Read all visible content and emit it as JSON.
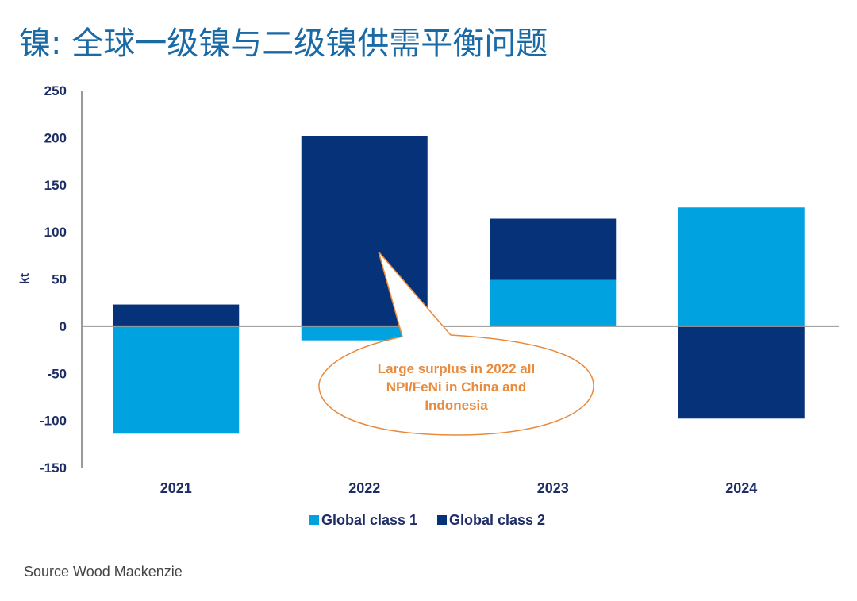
{
  "title": "镍: 全球一级镍与二级镍供需平衡问题",
  "source": "Source Wood Mackenzie",
  "colors": {
    "title": "#1a6aa6",
    "class1": "#00a3e0",
    "class2": "#06327a",
    "axis_text": "#1f2d66",
    "axis_line": "#9a9a9a",
    "annotation": "#e98a3c"
  },
  "chart_data": {
    "type": "bar",
    "stacked": true,
    "title": "镍: 全球一级镍与二级镍供需平衡问题",
    "xlabel": "",
    "ylabel": "kt",
    "ylim": [
      -150,
      250
    ],
    "yticks": [
      250,
      200,
      150,
      100,
      50,
      0,
      -50,
      -100,
      -150
    ],
    "ytick_labels": [
      "250",
      "200",
      "150",
      "100",
      "50",
      "0",
      "-50",
      "-100",
      "-150"
    ],
    "grid": false,
    "categories": [
      "2021",
      "2022",
      "2023",
      "2024"
    ],
    "series": [
      {
        "name": "Global class 1",
        "color": "#00a3e0",
        "values": [
          -114,
          -15,
          49,
          126
        ]
      },
      {
        "name": "Global class 2",
        "color": "#06327a",
        "values": [
          23,
          202,
          65,
          -98
        ]
      }
    ],
    "legend": {
      "position": "bottom",
      "entries": [
        "Global class 1",
        "Global class 2"
      ]
    },
    "annotation": {
      "lines": [
        "Large surplus in 2022 all",
        "NPI/FeNi in China and",
        "Indonesia"
      ],
      "points_to": "2022"
    }
  }
}
